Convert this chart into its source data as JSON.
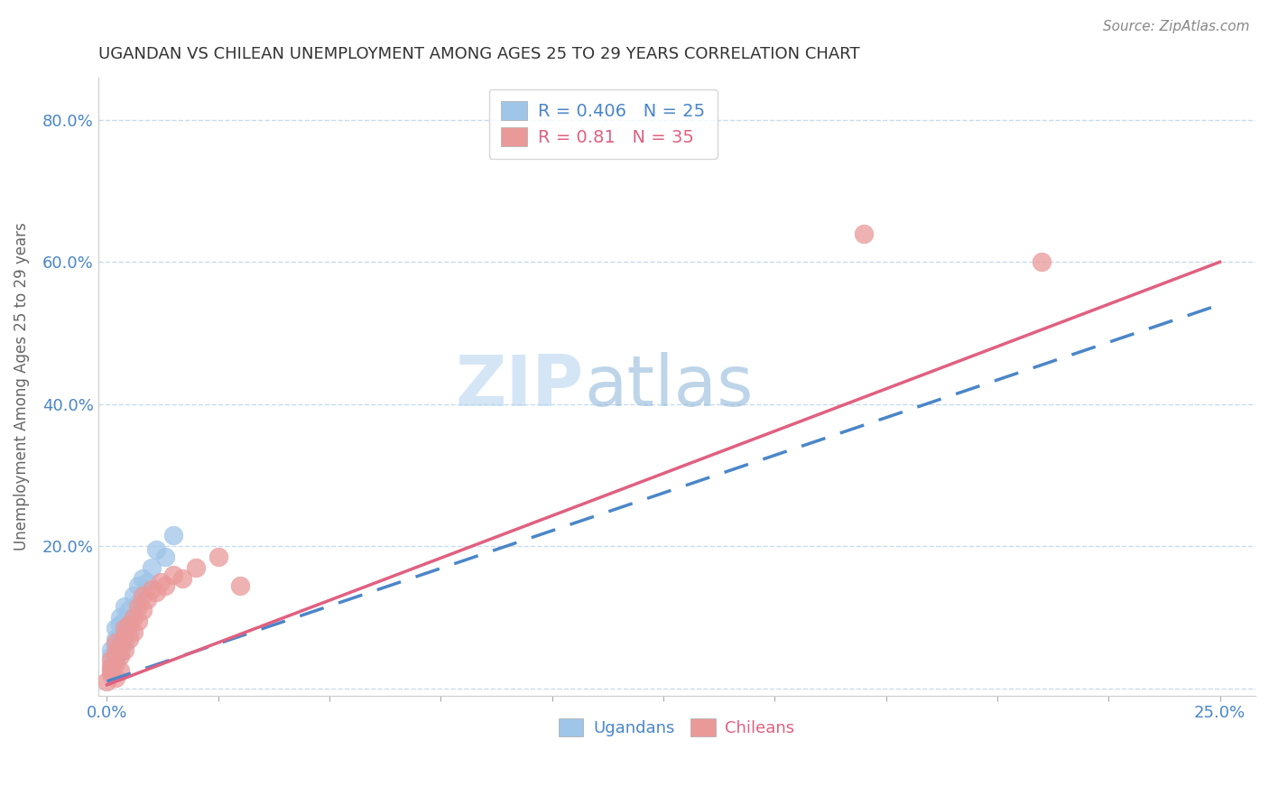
{
  "title": "UGANDAN VS CHILEAN UNEMPLOYMENT AMONG AGES 25 TO 29 YEARS CORRELATION CHART",
  "source": "Source: ZipAtlas.com",
  "ylabel": "Unemployment Among Ages 25 to 29 years",
  "xlim": [
    -0.002,
    0.258
  ],
  "ylim": [
    -0.01,
    0.86
  ],
  "ugandan_R": 0.406,
  "ugandan_N": 25,
  "chilean_R": 0.81,
  "chilean_N": 35,
  "ugandan_color": "#9fc5e8",
  "chilean_color": "#ea9999",
  "ugandan_line_color": "#4a86c8",
  "chilean_line_color": "#e06080",
  "background_color": "#ffffff",
  "grid_color": "#c8dced",
  "title_color": "#333333",
  "axis_label_color": "#666666",
  "tick_label_color": "#4a86c8",
  "legend_box_color": "#ffffff",
  "legend_border_color": "#cccccc",
  "ugandan_x": [
    0.001,
    0.001,
    0.001,
    0.002,
    0.002,
    0.002,
    0.002,
    0.003,
    0.003,
    0.003,
    0.003,
    0.004,
    0.004,
    0.004,
    0.005,
    0.005,
    0.006,
    0.007,
    0.007,
    0.008,
    0.009,
    0.01,
    0.011,
    0.013,
    0.015
  ],
  "ugandan_y": [
    0.03,
    0.045,
    0.055,
    0.04,
    0.06,
    0.07,
    0.085,
    0.05,
    0.075,
    0.09,
    0.1,
    0.065,
    0.095,
    0.115,
    0.08,
    0.11,
    0.13,
    0.12,
    0.145,
    0.155,
    0.15,
    0.17,
    0.195,
    0.185,
    0.215
  ],
  "chilean_x": [
    0.0,
    0.001,
    0.001,
    0.001,
    0.001,
    0.002,
    0.002,
    0.002,
    0.002,
    0.003,
    0.003,
    0.003,
    0.004,
    0.004,
    0.004,
    0.005,
    0.005,
    0.006,
    0.006,
    0.007,
    0.007,
    0.008,
    0.008,
    0.009,
    0.01,
    0.011,
    0.012,
    0.013,
    0.015,
    0.017,
    0.02,
    0.025,
    0.03,
    0.17,
    0.21
  ],
  "chilean_y": [
    0.01,
    0.02,
    0.025,
    0.03,
    0.04,
    0.015,
    0.035,
    0.05,
    0.065,
    0.025,
    0.045,
    0.06,
    0.055,
    0.075,
    0.085,
    0.07,
    0.09,
    0.08,
    0.1,
    0.095,
    0.115,
    0.11,
    0.13,
    0.125,
    0.14,
    0.135,
    0.15,
    0.145,
    0.16,
    0.155,
    0.17,
    0.185,
    0.145,
    0.64,
    0.6
  ],
  "ugandan_line_x0": 0.0,
  "ugandan_line_y0": 0.01,
  "ugandan_line_x1": 0.25,
  "ugandan_line_y1": 0.54,
  "chilean_line_x0": 0.0,
  "chilean_line_y0": 0.005,
  "chilean_line_x1": 0.25,
  "chilean_line_y1": 0.6
}
